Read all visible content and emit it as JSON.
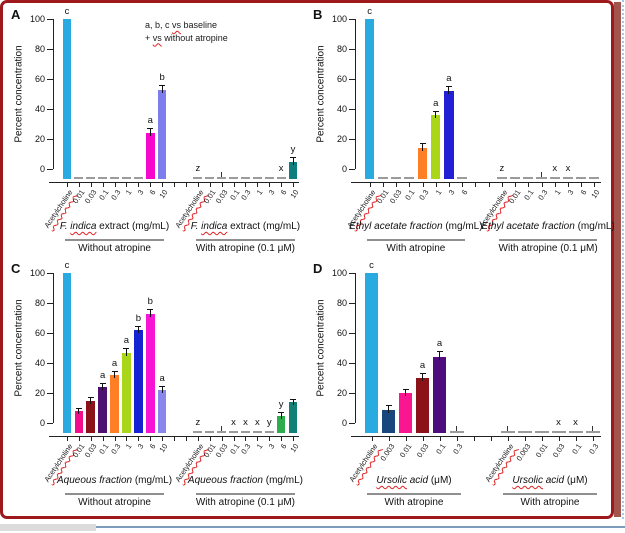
{
  "frame": {
    "border_color": "#9E191C",
    "side_strip_color": "#A3544C",
    "side_dots_color": "#A6C6E4",
    "bottom_line_color": "#7C9CBE",
    "bottom_block_color": "#DCDCDC",
    "background": "#FFFFFF"
  },
  "chart_data": [
    {
      "panel": "A",
      "type": "bar",
      "ylabel": "Percent concentration",
      "ylim": [
        0,
        100
      ],
      "yticks": [
        0,
        20,
        40,
        60,
        80,
        100
      ],
      "legend": [
        [
          {
            "text": "a, b, c "
          },
          {
            "text": "vs",
            "squiggle": true
          },
          {
            "text": " baseline"
          }
        ],
        [
          {
            "text": "+ "
          },
          {
            "text": "vs",
            "squiggle": true
          },
          {
            "text": " without atropine"
          }
        ]
      ],
      "groups": [
        {
          "caption": [
            {
              "text": "F. ",
              "italic": true
            },
            {
              "text": "indica",
              "italic": true,
              "squiggle": true
            },
            {
              "text": " extract (mg/mL)"
            }
          ],
          "condition": "Without atropine",
          "bars": [
            {
              "label": "Acetylcholine",
              "label_squiggle": true,
              "value": 100,
              "color": "#29ABE2",
              "letter": "c"
            },
            {
              "label": "0.01",
              "dash": true
            },
            {
              "label": "0.03",
              "dash": true
            },
            {
              "label": "0.1",
              "dash": true
            },
            {
              "label": "0.3",
              "dash": true
            },
            {
              "label": "1",
              "dash": true
            },
            {
              "label": "3",
              "dash": true
            },
            {
              "label": "6",
              "value": 24,
              "color": "#F707CE",
              "letter": "a",
              "err": 2
            },
            {
              "label": "10",
              "value": 53,
              "color": "#7D7DEB",
              "letter": "b",
              "err": 2
            }
          ]
        },
        {
          "caption": [
            {
              "text": "F. ",
              "italic": true
            },
            {
              "text": "indica",
              "italic": true,
              "squiggle": true
            },
            {
              "text": " extract (mg/mL)"
            }
          ],
          "condition": "With atropine (0.1 μM)",
          "bars": [
            {
              "label": "Acetylcholine",
              "label_squiggle": true,
              "dash": true,
              "letter": "z"
            },
            {
              "label": "0.01",
              "dash": true
            },
            {
              "label": "0.03",
              "dash": true,
              "tick": true
            },
            {
              "label": "0.1",
              "dash": true
            },
            {
              "label": "0.3",
              "dash": true
            },
            {
              "label": "1",
              "dash": true
            },
            {
              "label": "3",
              "dash": true
            },
            {
              "label": "6",
              "dash": true,
              "letter": "x"
            },
            {
              "label": "10",
              "value": 5,
              "color": "#0D7E7E",
              "letter": "y",
              "err": 2
            }
          ]
        }
      ]
    },
    {
      "panel": "B",
      "type": "bar",
      "ylabel": "Percent concentration",
      "ylim": [
        0,
        100
      ],
      "yticks": [
        0,
        20,
        40,
        60,
        80,
        100
      ],
      "groups": [
        {
          "caption": [
            {
              "text": "Ethyl acetate fraction",
              "italic": true
            },
            {
              "text": " (mg/mL)"
            }
          ],
          "condition": "With atropine",
          "bars": [
            {
              "label": "Acetylcholine",
              "label_squiggle": true,
              "value": 100,
              "color": "#29ABE2",
              "letter": "c"
            },
            {
              "label": "0.01",
              "dash": true
            },
            {
              "label": "0.03",
              "dash": true
            },
            {
              "label": "0.1",
              "dash": true
            },
            {
              "label": "0.3",
              "value": 14,
              "color": "#FF7F27",
              "err": 2
            },
            {
              "label": "1",
              "value": 36,
              "color": "#A9D718",
              "letter": "a",
              "err": 1.5
            },
            {
              "label": "3",
              "value": 52,
              "color": "#2121D3",
              "letter": "a",
              "err": 2
            },
            {
              "label": "6",
              "dash": true
            }
          ]
        },
        {
          "caption": [
            {
              "text": "Ethyl acetate fraction",
              "italic": true
            },
            {
              "text": " (mg/mL)"
            }
          ],
          "condition": "With atropine (0.1 μM)",
          "bars": [
            {
              "label": "Acetylcholine",
              "label_squiggle": true,
              "dash": true,
              "letter": "z"
            },
            {
              "label": "0.01",
              "dash": true
            },
            {
              "label": "0.1",
              "dash": true
            },
            {
              "label": "0.3",
              "dash": true,
              "tick": true
            },
            {
              "label": "1",
              "dash": true,
              "letter": "x"
            },
            {
              "label": "3",
              "dash": true,
              "letter": "x"
            },
            {
              "label": "6",
              "dash": true
            },
            {
              "label": "10",
              "dash": true
            }
          ]
        }
      ]
    },
    {
      "panel": "C",
      "type": "bar",
      "ylabel": "Percent concentration",
      "ylim": [
        0,
        100
      ],
      "yticks": [
        0,
        20,
        40,
        60,
        80,
        100
      ],
      "groups": [
        {
          "caption": [
            {
              "text": "Aqueous fraction",
              "italic": true
            },
            {
              "text": " (mg/mL)"
            }
          ],
          "condition": "Without atropine",
          "bars": [
            {
              "label": "Acetylcholine",
              "label_squiggle": true,
              "value": 100,
              "color": "#29ABE2",
              "letter": "c"
            },
            {
              "label": "0.01",
              "value": 8,
              "color": "#F20D8A",
              "err": 1
            },
            {
              "label": "0.03",
              "value": 15,
              "color": "#8B1219",
              "err": 1
            },
            {
              "label": "0.1",
              "value": 24,
              "color": "#4F1170",
              "letter": "a",
              "err": 1.5
            },
            {
              "label": "0.3",
              "value": 32,
              "color": "#FF7F27",
              "letter": "a",
              "err": 1.5
            },
            {
              "label": "1",
              "value": 47,
              "color": "#A9D718",
              "letter": "a",
              "err": 1.5
            },
            {
              "label": "3",
              "value": 62,
              "color": "#1523D0",
              "letter": "b",
              "err": 1.5
            },
            {
              "label": "6",
              "value": 73,
              "color": "#F714D4",
              "letter": "b",
              "err": 1.5
            },
            {
              "label": "10",
              "value": 22,
              "color": "#8787ED",
              "letter": "a",
              "err": 1.5
            }
          ]
        },
        {
          "caption": [
            {
              "text": "Aqueous fraction",
              "italic": true
            },
            {
              "text": " (mg/mL)"
            }
          ],
          "condition": "With atropine (0.1 μM)",
          "bars": [
            {
              "label": "Acetylcholine",
              "label_squiggle": true,
              "dash": true,
              "letter": "z"
            },
            {
              "label": "0.01",
              "dash": true
            },
            {
              "label": "0.03",
              "dash": true,
              "tick": true
            },
            {
              "label": "0.1",
              "dash": true,
              "letter": "x"
            },
            {
              "label": "0.3",
              "dash": true,
              "letter": "x"
            },
            {
              "label": "1",
              "dash": true,
              "letter": "x"
            },
            {
              "label": "3",
              "dash": true,
              "letter": "y"
            },
            {
              "label": "6",
              "value": 5,
              "color": "#2EAD4E",
              "letter": "y",
              "err": 1
            },
            {
              "label": "10",
              "value": 14,
              "color": "#128076",
              "err": 1
            }
          ]
        }
      ]
    },
    {
      "panel": "D",
      "type": "bar",
      "ylabel": "Percent concentration",
      "ylim": [
        0,
        100
      ],
      "yticks": [
        0,
        20,
        40,
        60,
        80,
        100
      ],
      "groups": [
        {
          "caption": [
            {
              "text": "Ursolic",
              "italic": true,
              "squiggle": true
            },
            {
              "text": " acid",
              "italic": true
            },
            {
              "text": " (μM)"
            }
          ],
          "condition": "With atropine",
          "bars": [
            {
              "label": "Acetylcholine",
              "label_squiggle": true,
              "value": 100,
              "color": "#29ABE2",
              "letter": "c"
            },
            {
              "label": "0.003",
              "value": 9,
              "color": "#17477D",
              "err": 1.5
            },
            {
              "label": "0.01",
              "value": 20,
              "color": "#FA1691",
              "err": 1.5
            },
            {
              "label": "0.03",
              "value": 30,
              "color": "#8B1219",
              "letter": "a",
              "err": 2
            },
            {
              "label": "0.1",
              "value": 44,
              "color": "#4E0D7C",
              "letter": "a",
              "err": 3
            },
            {
              "label": "0.3",
              "dash": true,
              "tick": true
            }
          ]
        },
        {
          "caption": [
            {
              "text": "Ursolic",
              "italic": true,
              "squiggle": true
            },
            {
              "text": " acid",
              "italic": true
            },
            {
              "text": " (μM)"
            }
          ],
          "condition": "With atropine",
          "bars": [
            {
              "label": "Acetylcholine",
              "label_squiggle": true,
              "dash": true,
              "tick": true
            },
            {
              "label": "0.003",
              "dash": true
            },
            {
              "label": "0.01",
              "dash": true
            },
            {
              "label": "0.03",
              "dash": true,
              "letter": "x"
            },
            {
              "label": "0.1",
              "dash": true,
              "letter": "x"
            },
            {
              "label": "0.3",
              "dash": true,
              "tick": true
            }
          ]
        }
      ]
    }
  ]
}
